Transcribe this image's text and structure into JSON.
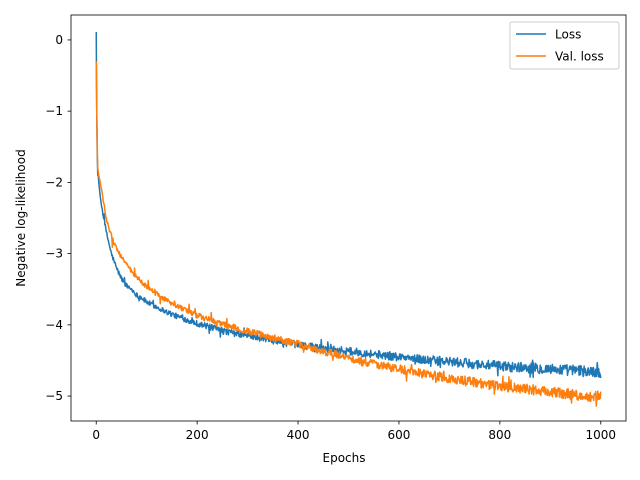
{
  "chart_data": {
    "type": "line",
    "title": "",
    "xlabel": "Epochs",
    "ylabel": "Negative log-likelihood",
    "xlim": [
      -50,
      1050
    ],
    "ylim": [
      -5.35,
      0.35
    ],
    "x_ticks": [
      0,
      200,
      400,
      600,
      800,
      1000
    ],
    "x_tick_labels": [
      "0",
      "200",
      "400",
      "600",
      "800",
      "1000"
    ],
    "y_ticks": [
      0,
      -1,
      -2,
      -3,
      -4,
      -5
    ],
    "y_tick_labels": [
      "0",
      "−1",
      "−2",
      "−3",
      "−4",
      "−5"
    ],
    "grid": false,
    "legend_position": "top-right",
    "series": [
      {
        "name": "Loss",
        "color": "#1f77b4",
        "x": [
          0,
          1,
          2,
          3,
          5,
          8,
          10,
          15,
          20,
          30,
          40,
          50,
          60,
          70,
          80,
          90,
          100,
          120,
          140,
          160,
          180,
          200,
          220,
          250,
          280,
          300,
          350,
          400,
          450,
          500,
          550,
          600,
          650,
          700,
          750,
          800,
          850,
          900,
          950,
          1000
        ],
        "values": [
          0.1,
          -1.0,
          -1.6,
          -1.9,
          -2.0,
          -2.2,
          -2.3,
          -2.5,
          -2.7,
          -3.0,
          -3.2,
          -3.35,
          -3.45,
          -3.5,
          -3.58,
          -3.62,
          -3.68,
          -3.75,
          -3.82,
          -3.88,
          -3.93,
          -3.98,
          -4.02,
          -4.08,
          -4.13,
          -4.15,
          -4.22,
          -4.28,
          -4.33,
          -4.37,
          -4.41,
          -4.45,
          -4.49,
          -4.52,
          -4.55,
          -4.58,
          -4.6,
          -4.62,
          -4.64,
          -4.67
        ]
      },
      {
        "name": "Val. loss",
        "color": "#ff7f0e",
        "x": [
          0,
          1,
          2,
          3,
          5,
          8,
          10,
          15,
          20,
          30,
          40,
          50,
          60,
          70,
          80,
          90,
          100,
          120,
          140,
          160,
          180,
          200,
          220,
          250,
          280,
          300,
          350,
          400,
          450,
          500,
          550,
          600,
          650,
          700,
          750,
          800,
          850,
          900,
          950,
          1000
        ],
        "values": [
          -0.3,
          -1.0,
          -1.5,
          -1.8,
          -1.9,
          -2.0,
          -2.1,
          -2.3,
          -2.5,
          -2.75,
          -2.92,
          -3.05,
          -3.15,
          -3.25,
          -3.33,
          -3.4,
          -3.47,
          -3.57,
          -3.66,
          -3.74,
          -3.81,
          -3.87,
          -3.92,
          -3.99,
          -4.05,
          -4.09,
          -4.18,
          -4.27,
          -4.37,
          -4.46,
          -4.55,
          -4.62,
          -4.69,
          -4.75,
          -4.81,
          -4.86,
          -4.9,
          -4.94,
          -4.98,
          -5.01
        ]
      }
    ]
  }
}
